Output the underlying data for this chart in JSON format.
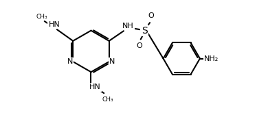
{
  "bg_color": "#ffffff",
  "line_color": "#000000",
  "text_color": "#000000",
  "lw": 1.5,
  "fs": 8.0,
  "figsize": [
    3.74,
    1.68
  ],
  "dpi": 100,
  "xlim": [
    -0.5,
    10.5
  ],
  "ylim": [
    -0.5,
    5.0
  ]
}
